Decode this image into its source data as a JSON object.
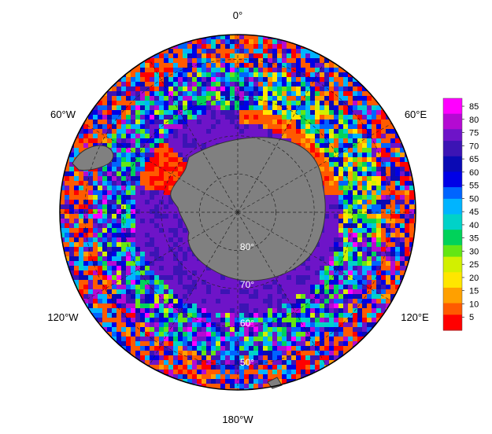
{
  "map": {
    "projection": "south-polar-stereographic",
    "longitude_labels": [
      {
        "label": "0°",
        "lon": 0
      },
      {
        "label": "60°E",
        "lon": 60
      },
      {
        "label": "120°E",
        "lon": 120
      },
      {
        "label": "180°W",
        "lon": 180
      },
      {
        "label": "120°W",
        "lon": -120
      },
      {
        "label": "60°W",
        "lon": -60
      }
    ],
    "latitude_labels": [
      {
        "label": "80°",
        "lat": -80
      },
      {
        "label": "70°",
        "lat": -70
      },
      {
        "label": "60°",
        "lat": -60
      },
      {
        "label": "50°",
        "lat": -50
      }
    ],
    "gridline_latitudes": [
      -80,
      -70,
      -60,
      -50
    ],
    "gridline_longitudes": [
      0,
      30,
      60,
      90,
      120,
      150,
      180,
      -150,
      -120,
      -90,
      -60,
      -30
    ],
    "colors": {
      "land": "#808080",
      "grid": "#222222",
      "border": "#000000"
    }
  },
  "colorbar": {
    "ticks": [
      "85",
      "80",
      "75",
      "70",
      "65",
      "60",
      "55",
      "50",
      "45",
      "40",
      "35",
      "30",
      "25",
      "20",
      "15",
      "10",
      "5"
    ],
    "min": 0,
    "max": 88,
    "colormap": [
      "#ff0000",
      "#ff5a00",
      "#ffa000",
      "#ffe600",
      "#d2f000",
      "#64e614",
      "#00d25a",
      "#00d2c8",
      "#00b4ff",
      "#0064ff",
      "#0000e6",
      "#0a0ab4",
      "#3c14b4",
      "#6e14c8",
      "#b40ad2",
      "#ff00ff"
    ]
  }
}
